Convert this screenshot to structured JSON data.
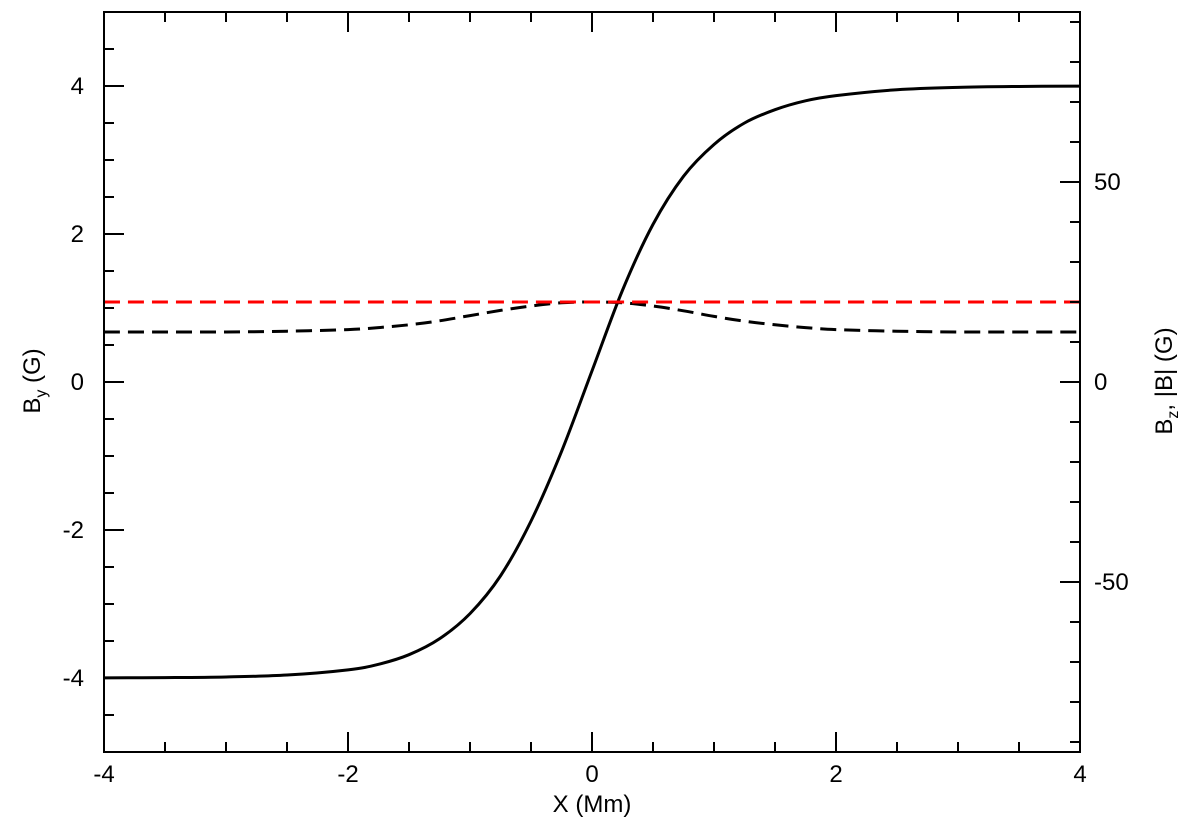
{
  "chart_data": {
    "type": "line",
    "x_axis": {
      "label": "X (Mm)",
      "range": [
        -4,
        4
      ],
      "ticks": [
        -4,
        -2,
        0,
        2,
        4
      ],
      "tick_labels": [
        "-4",
        "-2",
        "0",
        "2",
        "4"
      ],
      "minor_step": 0.5
    },
    "y_axis_left": {
      "label_main": "B",
      "label_sub": "y",
      "label_unit": " (G)",
      "range": [
        -5,
        5
      ],
      "ticks": [
        -4,
        -2,
        0,
        2,
        4
      ],
      "tick_labels": [
        "-4",
        "-2",
        "0",
        "2",
        "4"
      ],
      "minor_step": 0.5
    },
    "y_axis_right": {
      "label_main": "B",
      "label_sub": "z",
      "label_rest": ", |B| (G)",
      "range": [
        -92.5,
        92.5
      ],
      "ticks": [
        -50,
        0,
        50
      ],
      "tick_labels": [
        "-50",
        "0",
        "50"
      ],
      "minor_step": 10
    },
    "series": [
      {
        "axis": "left",
        "style": "solid",
        "color": "#000000",
        "x": [
          -4,
          -3.5,
          -3,
          -2.5,
          -2,
          -1.75,
          -1.5,
          -1.25,
          -1,
          -0.75,
          -0.5,
          -0.25,
          0,
          0.25,
          0.5,
          0.75,
          1,
          1.25,
          1.5,
          1.75,
          2,
          2.5,
          3,
          3.5,
          4
        ],
        "y": [
          -3.998,
          -3.995,
          -3.986,
          -3.96,
          -3.89,
          -3.815,
          -3.685,
          -3.47,
          -3.13,
          -2.62,
          -1.88,
          -0.94,
          0.15,
          1.24,
          2.13,
          2.78,
          3.21,
          3.5,
          3.68,
          3.8,
          3.87,
          3.95,
          3.982,
          3.994,
          3.998
        ]
      },
      {
        "axis": "right",
        "style": "dashed",
        "color": "#000000",
        "x": [
          -4,
          -3.5,
          -3,
          -2.5,
          -2,
          -1.75,
          -1.5,
          -1.25,
          -1,
          -0.75,
          -0.5,
          -0.25,
          0,
          0.25,
          0.5,
          0.75,
          1,
          1.25,
          1.5,
          1.75,
          2,
          2.5,
          3,
          3.5,
          4
        ],
        "y": [
          12.5,
          12.5,
          12.5,
          12.7,
          13.1,
          13.6,
          14.3,
          15.3,
          16.6,
          17.9,
          19.0,
          19.8,
          20.0,
          19.8,
          19.0,
          17.8,
          16.4,
          15.2,
          14.3,
          13.6,
          13.1,
          12.7,
          12.5,
          12.5,
          12.5
        ]
      },
      {
        "axis": "right",
        "style": "dashed",
        "color": "#ff0000",
        "x": [
          -4,
          4
        ],
        "y": [
          20,
          20
        ]
      }
    ]
  }
}
